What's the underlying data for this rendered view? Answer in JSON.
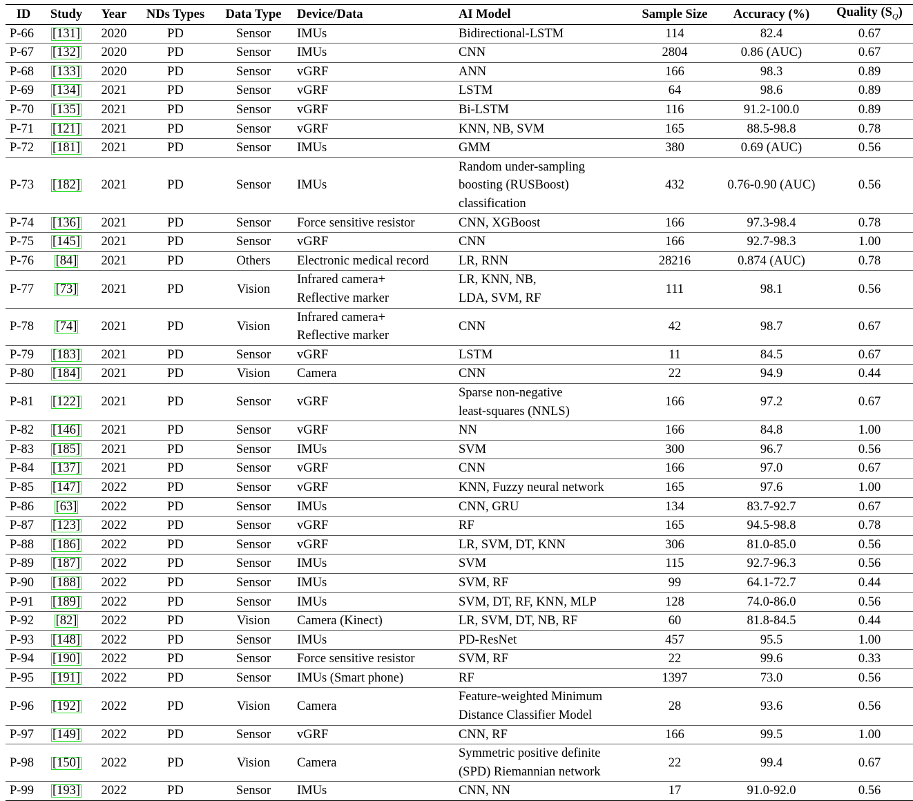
{
  "table": {
    "headers": {
      "id": "ID",
      "study": "Study",
      "year": "Year",
      "nd_types": "NDs Types",
      "data_type": "Data Type",
      "device": "Device/Data",
      "ai_model": "AI Model",
      "sample_size": "Sample Size",
      "accuracy": "Accuracy (%)",
      "quality": "Quality (S"
    },
    "quality_subscript": "Q",
    "quality_close": ")",
    "rows": [
      {
        "id": "P-66",
        "study": "[131]",
        "year": "2020",
        "nd": "PD",
        "dt": "Sensor",
        "dev": [
          "IMUs"
        ],
        "ai": [
          "Bidirectional-LSTM"
        ],
        "ss": "114",
        "acc": "82.4",
        "q": "0.67"
      },
      {
        "id": "P-67",
        "study": "[132]",
        "year": "2020",
        "nd": "PD",
        "dt": "Sensor",
        "dev": [
          "IMUs"
        ],
        "ai": [
          "CNN"
        ],
        "ss": "2804",
        "acc": "0.86 (AUC)",
        "q": "0.67"
      },
      {
        "id": "P-68",
        "study": "[133]",
        "year": "2020",
        "nd": "PD",
        "dt": "Sensor",
        "dev": [
          "vGRF"
        ],
        "ai": [
          "ANN"
        ],
        "ss": "166",
        "acc": "98.3",
        "q": "0.89"
      },
      {
        "id": "P-69",
        "study": "[134]",
        "year": "2021",
        "nd": "PD",
        "dt": "Sensor",
        "dev": [
          "vGRF"
        ],
        "ai": [
          "LSTM"
        ],
        "ss": "64",
        "acc": "98.6",
        "q": "0.89"
      },
      {
        "id": "P-70",
        "study": "[135]",
        "year": "2021",
        "nd": "PD",
        "dt": "Sensor",
        "dev": [
          "vGRF"
        ],
        "ai": [
          "Bi-LSTM"
        ],
        "ss": "116",
        "acc": "91.2-100.0",
        "q": "0.89"
      },
      {
        "id": "P-71",
        "study": "[121]",
        "year": "2021",
        "nd": "PD",
        "dt": "Sensor",
        "dev": [
          "vGRF"
        ],
        "ai": [
          "KNN, NB, SVM"
        ],
        "ss": "165",
        "acc": "88.5-98.8",
        "q": "0.78"
      },
      {
        "id": "P-72",
        "study": "[181]",
        "year": "2021",
        "nd": "PD",
        "dt": "Sensor",
        "dev": [
          "IMUs"
        ],
        "ai": [
          "GMM"
        ],
        "ss": "380",
        "acc": "0.69 (AUC)",
        "q": "0.56"
      },
      {
        "id": "P-73",
        "study": "[182]",
        "year": "2021",
        "nd": "PD",
        "dt": "Sensor",
        "dev": [
          "IMUs"
        ],
        "ai": [
          "Random under-sampling",
          "boosting (RUSBoost)",
          "classification"
        ],
        "ss": "432",
        "acc": "0.76-0.90 (AUC)",
        "q": "0.56"
      },
      {
        "id": "P-74",
        "study": "[136]",
        "year": "2021",
        "nd": "PD",
        "dt": "Sensor",
        "dev": [
          "Force sensitive resistor"
        ],
        "ai": [
          "CNN, XGBoost"
        ],
        "ss": "166",
        "acc": "97.3-98.4",
        "q": "0.78"
      },
      {
        "id": "P-75",
        "study": "[145]",
        "year": "2021",
        "nd": "PD",
        "dt": "Sensor",
        "dev": [
          "vGRF"
        ],
        "ai": [
          "CNN"
        ],
        "ss": "166",
        "acc": "92.7-98.3",
        "q": "1.00"
      },
      {
        "id": "P-76",
        "study": "[84]",
        "year": "2021",
        "nd": "PD",
        "dt": "Others",
        "dev": [
          "Electronic medical record"
        ],
        "ai": [
          "LR, RNN"
        ],
        "ss": "28216",
        "acc": "0.874 (AUC)",
        "q": "0.78"
      },
      {
        "id": "P-77",
        "study": "[73]",
        "year": "2021",
        "nd": "PD",
        "dt": "Vision",
        "dev": [
          "Infrared camera+",
          "Reflective marker"
        ],
        "ai": [
          "LR, KNN, NB,",
          "LDA, SVM, RF"
        ],
        "ss": "111",
        "acc": "98.1",
        "q": "0.56"
      },
      {
        "id": "P-78",
        "study": "[74]",
        "year": "2021",
        "nd": "PD",
        "dt": "Vision",
        "dev": [
          "Infrared camera+",
          "Reflective marker"
        ],
        "ai": [
          "CNN"
        ],
        "ss": "42",
        "acc": "98.7",
        "q": "0.67"
      },
      {
        "id": "P-79",
        "study": "[183]",
        "year": "2021",
        "nd": "PD",
        "dt": "Sensor",
        "dev": [
          "vGRF"
        ],
        "ai": [
          "LSTM"
        ],
        "ss": "11",
        "acc": "84.5",
        "q": "0.67"
      },
      {
        "id": "P-80",
        "study": "[184]",
        "year": "2021",
        "nd": "PD",
        "dt": "Vision",
        "dev": [
          "Camera"
        ],
        "ai": [
          "CNN"
        ],
        "ss": "22",
        "acc": "94.9",
        "q": "0.44"
      },
      {
        "id": "P-81",
        "study": "[122]",
        "year": "2021",
        "nd": "PD",
        "dt": "Sensor",
        "dev": [
          "vGRF"
        ],
        "ai": [
          "Sparse non-negative",
          "least-squares (NNLS)"
        ],
        "ss": "166",
        "acc": "97.2",
        "q": "0.67"
      },
      {
        "id": "P-82",
        "study": "[146]",
        "year": "2021",
        "nd": "PD",
        "dt": "Sensor",
        "dev": [
          "vGRF"
        ],
        "ai": [
          "NN"
        ],
        "ss": "166",
        "acc": "84.8",
        "q": "1.00"
      },
      {
        "id": "P-83",
        "study": "[185]",
        "year": "2021",
        "nd": "PD",
        "dt": "Sensor",
        "dev": [
          "IMUs"
        ],
        "ai": [
          "SVM"
        ],
        "ss": "300",
        "acc": "96.7",
        "q": "0.56"
      },
      {
        "id": "P-84",
        "study": "[137]",
        "year": "2021",
        "nd": "PD",
        "dt": "Sensor",
        "dev": [
          "vGRF"
        ],
        "ai": [
          "CNN"
        ],
        "ss": "166",
        "acc": "97.0",
        "q": "0.67"
      },
      {
        "id": "P-85",
        "study": "[147]",
        "year": "2022",
        "nd": "PD",
        "dt": "Sensor",
        "dev": [
          "vGRF"
        ],
        "ai": [
          "KNN, Fuzzy neural network"
        ],
        "ss": "165",
        "acc": "97.6",
        "q": "1.00"
      },
      {
        "id": "P-86",
        "study": "[63]",
        "year": "2022",
        "nd": "PD",
        "dt": "Sensor",
        "dev": [
          "IMUs"
        ],
        "ai": [
          "CNN, GRU"
        ],
        "ss": "134",
        "acc": "83.7-92.7",
        "q": "0.67"
      },
      {
        "id": "P-87",
        "study": "[123]",
        "year": "2022",
        "nd": "PD",
        "dt": "Sensor",
        "dev": [
          "vGRF"
        ],
        "ai": [
          "RF"
        ],
        "ss": "165",
        "acc": "94.5-98.8",
        "q": "0.78"
      },
      {
        "id": "P-88",
        "study": "[186]",
        "year": "2022",
        "nd": "PD",
        "dt": "Sensor",
        "dev": [
          "vGRF"
        ],
        "ai": [
          "LR, SVM, DT, KNN"
        ],
        "ss": "306",
        "acc": "81.0-85.0",
        "q": "0.56"
      },
      {
        "id": "P-89",
        "study": "[187]",
        "year": "2022",
        "nd": "PD",
        "dt": "Sensor",
        "dev": [
          "IMUs"
        ],
        "ai": [
          "SVM"
        ],
        "ss": "115",
        "acc": "92.7-96.3",
        "q": "0.56"
      },
      {
        "id": "P-90",
        "study": "[188]",
        "year": "2022",
        "nd": "PD",
        "dt": "Sensor",
        "dev": [
          "IMUs"
        ],
        "ai": [
          "SVM, RF"
        ],
        "ss": "99",
        "acc": "64.1-72.7",
        "q": "0.44"
      },
      {
        "id": "P-91",
        "study": "[189]",
        "year": "2022",
        "nd": "PD",
        "dt": "Sensor",
        "dev": [
          "IMUs"
        ],
        "ai": [
          "SVM, DT, RF, KNN, MLP"
        ],
        "ss": "128",
        "acc": "74.0-86.0",
        "q": "0.56"
      },
      {
        "id": "P-92",
        "study": "[82]",
        "year": "2022",
        "nd": "PD",
        "dt": "Vision",
        "dev": [
          "Camera (Kinect)"
        ],
        "ai": [
          "LR, SVM, DT, NB, RF"
        ],
        "ss": "60",
        "acc": "81.8-84.5",
        "q": "0.44"
      },
      {
        "id": "P-93",
        "study": "[148]",
        "year": "2022",
        "nd": "PD",
        "dt": "Sensor",
        "dev": [
          "IMUs"
        ],
        "ai": [
          "PD-ResNet"
        ],
        "ss": "457",
        "acc": "95.5",
        "q": "1.00"
      },
      {
        "id": "P-94",
        "study": "[190]",
        "year": "2022",
        "nd": "PD",
        "dt": "Sensor",
        "dev": [
          "Force sensitive resistor"
        ],
        "ai": [
          "SVM, RF"
        ],
        "ss": "22",
        "acc": "99.6",
        "q": "0.33"
      },
      {
        "id": "P-95",
        "study": "[191]",
        "year": "2022",
        "nd": "PD",
        "dt": "Sensor",
        "dev": [
          "IMUs (Smart phone)"
        ],
        "ai": [
          "RF"
        ],
        "ss": "1397",
        "acc": "73.0",
        "q": "0.56"
      },
      {
        "id": "P-96",
        "study": "[192]",
        "year": "2022",
        "nd": "PD",
        "dt": "Vision",
        "dev": [
          "Camera"
        ],
        "ai": [
          "Feature-weighted Minimum",
          "Distance Classifier Model"
        ],
        "ss": "28",
        "acc": "93.6",
        "q": "0.56"
      },
      {
        "id": "P-97",
        "study": "[149]",
        "year": "2022",
        "nd": "PD",
        "dt": "Sensor",
        "dev": [
          "vGRF"
        ],
        "ai": [
          "CNN, RF"
        ],
        "ss": "166",
        "acc": "99.5",
        "q": "1.00"
      },
      {
        "id": "P-98",
        "study": "[150]",
        "year": "2022",
        "nd": "PD",
        "dt": "Vision",
        "dev": [
          "Camera"
        ],
        "ai": [
          "Symmetric positive definite",
          "(SPD) Riemannian network"
        ],
        "ss": "22",
        "acc": "99.4",
        "q": "0.67"
      },
      {
        "id": "P-99",
        "study": "[193]",
        "year": "2022",
        "nd": "PD",
        "dt": "Sensor",
        "dev": [
          "IMUs"
        ],
        "ai": [
          "CNN, NN"
        ],
        "ss": "17",
        "acc": "91.0-92.0",
        "q": "0.56"
      }
    ]
  },
  "colors": {
    "citation_box": "#22dd22",
    "text": "#000000"
  }
}
